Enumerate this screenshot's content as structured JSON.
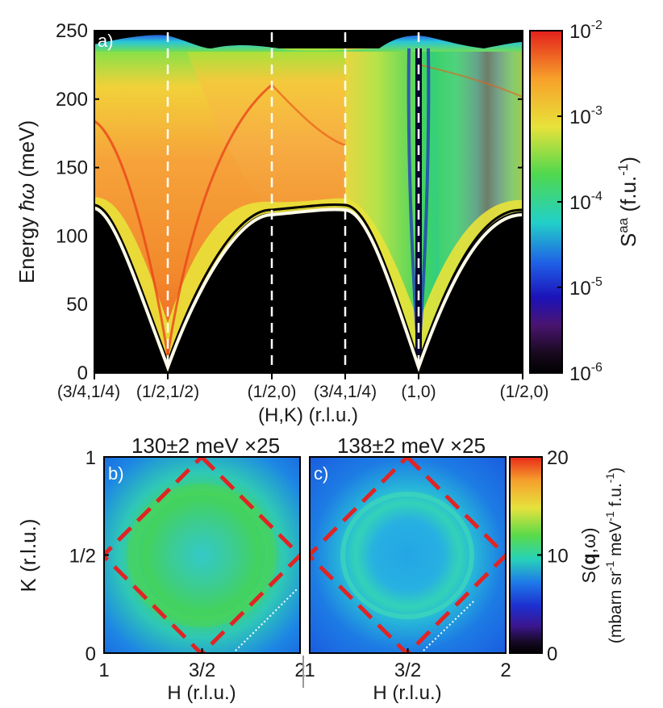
{
  "chart_data": [
    {
      "panel": "a",
      "type": "heatmap",
      "panel_label": "a)",
      "xlabel": "(H,K) (r.l.u.)",
      "ylabel": "Energy ħω (meV)",
      "ylim": [
        0,
        250
      ],
      "yticks": [
        0,
        50,
        100,
        150,
        200,
        250
      ],
      "xticks": [
        "(3/4,1/4)",
        "(1/2,1/2)",
        "(1/2,0)",
        "(3/4,1/4)",
        "(1,0)",
        "(1/2,0)"
      ],
      "dashed_lines_at_ticks": [
        1,
        2,
        3,
        4
      ],
      "dispersion": {
        "lower_branch_meV": [
          120,
          5,
          115,
          125,
          5,
          115
        ],
        "upper_branch_meV": [
          240,
          240,
          235,
          235,
          240,
          240
        ]
      },
      "colorbar": {
        "label": "S^aa (f.u.^-1)",
        "scale": "log",
        "ticks": [
          "10^-2",
          "10^-3",
          "10^-4",
          "10^-5",
          "10^-6"
        ]
      }
    },
    {
      "panel": "b",
      "type": "heatmap",
      "panel_label": "b)",
      "title": "130±2 meV ×25",
      "xlabel": "H (r.l.u.)",
      "ylabel": "K (r.l.u.)",
      "xlim": [
        1,
        2
      ],
      "ylim": [
        0,
        1
      ],
      "xticks": [
        "1",
        "3/2",
        "2"
      ],
      "yticks": [
        "0",
        "1/2",
        "1"
      ],
      "zone_boundary": "dashed red diamond through (3/2,0), (2,1/2), (3/2,1), (1,1/2)"
    },
    {
      "panel": "c",
      "type": "heatmap",
      "panel_label": "c)",
      "title": "138±2 meV ×25",
      "xlabel": "H (r.l.u.)",
      "xlim": [
        1,
        2
      ],
      "ylim": [
        0,
        1
      ],
      "xticks": [
        "1",
        "3/2",
        "2"
      ],
      "zone_boundary": "dashed red diamond through (3/2,0), (2,1/2), (3/2,1), (1,1/2)",
      "colorbar": {
        "label": "S(q,ω) (mbarn sr^-1 meV^-1 f.u.^-1)",
        "scale": "linear",
        "range": [
          0,
          20
        ],
        "ticks": [
          "20",
          "10",
          "0"
        ]
      }
    }
  ],
  "texts": {
    "a_label": "a)",
    "a_xlabel": "(H,K) (r.l.u.)",
    "a_ylabel_prefix": "Energy ",
    "a_ylabel_suffix": " (meV)",
    "a_yticks": [
      "250",
      "200",
      "150",
      "100",
      "50",
      "0"
    ],
    "a_xticks": [
      "(3/4,1/4)",
      "(1/2,1/2)",
      "(1/2,0)",
      "(3/4,1/4)",
      "(1,0)",
      "(1/2,0)"
    ],
    "cb1_ticks": [
      "10",
      "10",
      "10",
      "10",
      "10"
    ],
    "cb1_exp": [
      "-2",
      "-3",
      "-4",
      "-5",
      "-6"
    ],
    "cb1_label_main": "S",
    "cb1_label_sup": "aa",
    "cb1_label_unit": " (f.u.",
    "cb1_label_unit_sup": "-1",
    "cb1_label_close": ")",
    "b_label": "b)",
    "b_title": "130±2 meV ×25",
    "c_label": "c)",
    "c_title": "138±2 meV ×25",
    "bc_xticks": [
      "1",
      "3/2",
      "2"
    ],
    "bc_xlabel": "H (r.l.u.)",
    "b_yticks": [
      "1",
      "1/2",
      "0"
    ],
    "b_ylabel": "K (r.l.u.)",
    "cb2_ticks": [
      "20",
      "10",
      "0"
    ],
    "cb2_label_1": "S(",
    "cb2_label_q": "q",
    "cb2_label_2": ",ω)",
    "cb2_label_3": "(mbarn sr",
    "cb2_label_4": "meV",
    "cb2_label_5": "f.u.",
    "cb2_sup": "-1"
  }
}
